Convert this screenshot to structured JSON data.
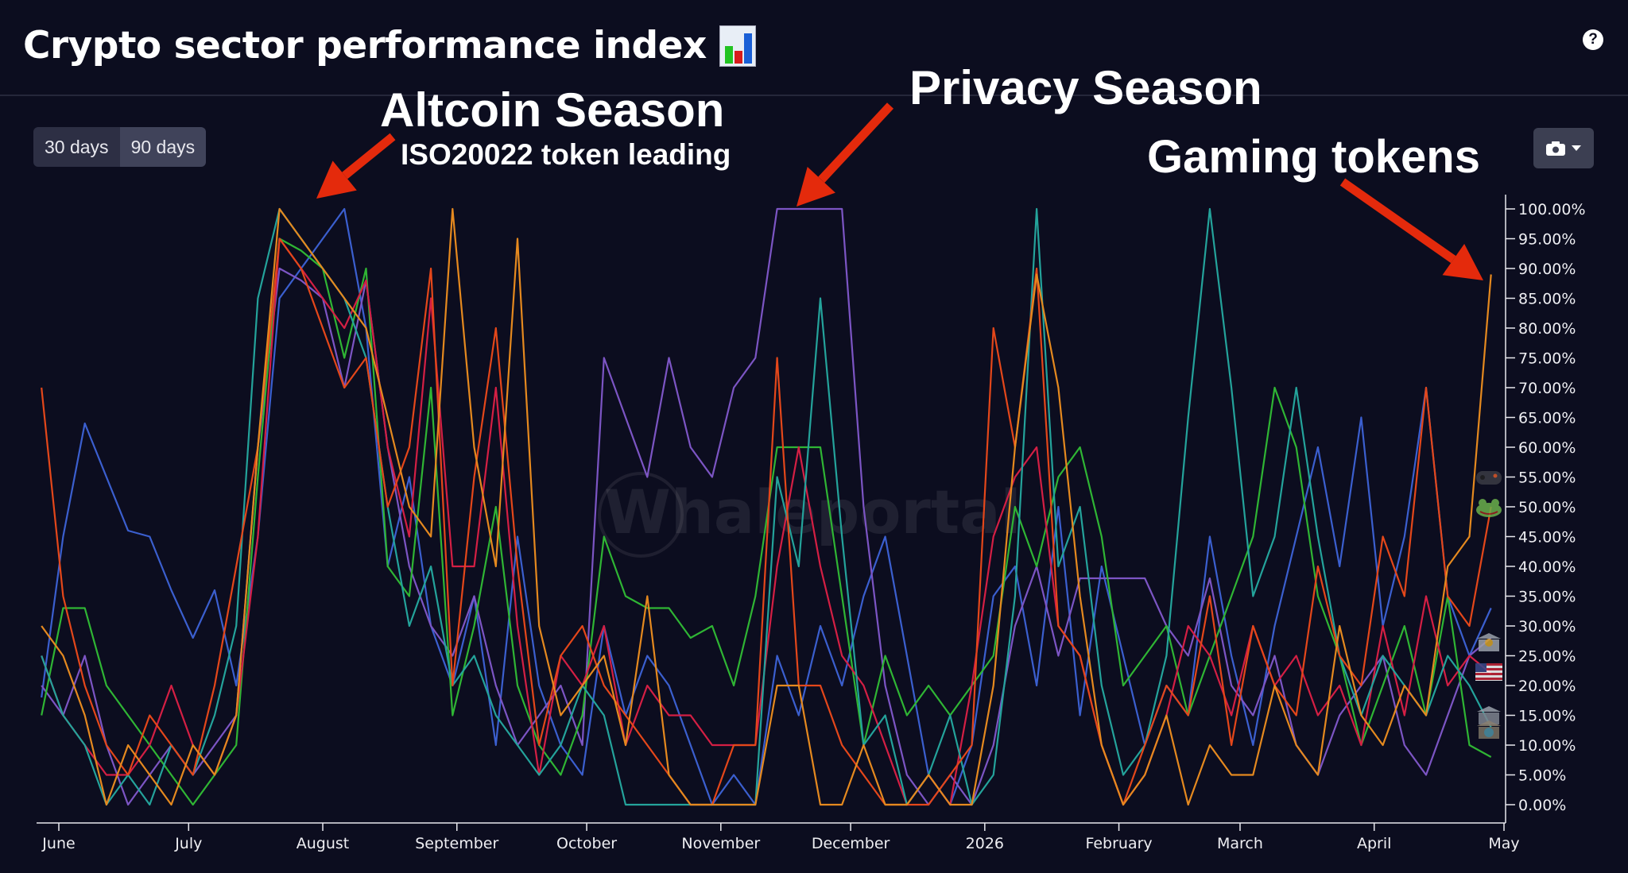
{
  "header": {
    "title": "Crypto sector performance index",
    "title_icon": "bar-chart-emoji",
    "help_label": "?"
  },
  "controls": {
    "range_buttons": [
      "30 days",
      "90 days"
    ],
    "camera_icon": "camera-icon"
  },
  "watermark": "Whaleportal",
  "annotations": {
    "altcoin": "Altcoin Season",
    "iso": "ISO20022 token leading",
    "privacy": "Privacy Season",
    "gaming": "Gaming tokens",
    "arrow_color": "#e42a0c"
  },
  "legend_icons": [
    "game-controller-icon",
    "frog-icon",
    "bank-dollar-icon",
    "us-flag-icon",
    "bank-icon",
    "bank-globe-icon"
  ],
  "chart_data": {
    "type": "line",
    "title": "Crypto sector performance index",
    "xlabel": "",
    "ylabel": "",
    "ylim": [
      0,
      100
    ],
    "y_axis_side": "right",
    "grid": false,
    "xtick_labels": [
      "June",
      "July",
      "August",
      "September",
      "October",
      "November",
      "December",
      "2026",
      "February",
      "March",
      "April",
      "May"
    ],
    "xtick_dates": [
      "2025-06-01",
      "2025-07-01",
      "2025-08-01",
      "2025-09-01",
      "2025-10-01",
      "2025-11-01",
      "2025-12-01",
      "2026-01-01",
      "2026-02-01",
      "2026-03-01",
      "2026-04-01",
      "2026-05-01"
    ],
    "ytick_labels": [
      "100.00%",
      "95.00%",
      "90.00%",
      "85.00%",
      "80.00%",
      "75.00%",
      "70.00%",
      "65.00%",
      "60.00%",
      "55.00%",
      "50.00%",
      "45.00%",
      "40.00%",
      "35.00%",
      "30.00%",
      "25.00%",
      "20.00%",
      "15.00%",
      "10.00%",
      "5.00%",
      "0.00%"
    ],
    "x": [
      "2025-05-28",
      "2025-06-02",
      "2025-06-07",
      "2025-06-12",
      "2025-06-17",
      "2025-06-22",
      "2025-06-27",
      "2025-07-02",
      "2025-07-07",
      "2025-07-12",
      "2025-07-17",
      "2025-07-22",
      "2025-07-27",
      "2025-08-01",
      "2025-08-06",
      "2025-08-11",
      "2025-08-16",
      "2025-08-21",
      "2025-08-26",
      "2025-08-31",
      "2025-09-05",
      "2025-09-10",
      "2025-09-15",
      "2025-09-20",
      "2025-09-25",
      "2025-09-30",
      "2025-10-05",
      "2025-10-10",
      "2025-10-15",
      "2025-10-20",
      "2025-10-25",
      "2025-10-30",
      "2025-11-04",
      "2025-11-09",
      "2025-11-14",
      "2025-11-19",
      "2025-11-24",
      "2025-11-29",
      "2025-12-04",
      "2025-12-09",
      "2025-12-14",
      "2025-12-19",
      "2025-12-24",
      "2025-12-29",
      "2026-01-03",
      "2026-01-08",
      "2026-01-13",
      "2026-01-18",
      "2026-01-23",
      "2026-01-28",
      "2026-02-02",
      "2026-02-07",
      "2026-02-12",
      "2026-02-17",
      "2026-02-22",
      "2026-02-27",
      "2026-03-04",
      "2026-03-09",
      "2026-03-14",
      "2026-03-19",
      "2026-03-24",
      "2026-03-29",
      "2026-04-03",
      "2026-04-08",
      "2026-04-13",
      "2026-04-18",
      "2026-04-23",
      "2026-04-28"
    ],
    "series": [
      {
        "color": "#3b5fcf",
        "values": [
          18,
          45,
          64,
          55,
          46,
          45,
          36,
          28,
          36,
          20,
          45,
          85,
          90,
          95,
          100,
          80,
          40,
          55,
          30,
          20,
          35,
          10,
          45,
          20,
          10,
          5,
          30,
          15,
          25,
          20,
          10,
          0,
          5,
          0,
          25,
          15,
          30,
          20,
          35,
          45,
          25,
          5,
          0,
          10,
          35,
          40,
          20,
          50,
          15,
          40,
          25,
          10,
          20,
          15,
          45,
          25,
          10,
          30,
          45,
          60,
          40,
          65,
          30,
          45,
          70,
          35,
          25,
          33
        ]
      },
      {
        "color": "#7c55c4",
        "values": [
          20,
          15,
          25,
          10,
          0,
          5,
          10,
          5,
          10,
          15,
          60,
          90,
          88,
          85,
          70,
          88,
          60,
          40,
          30,
          25,
          35,
          20,
          10,
          15,
          20,
          10,
          75,
          65,
          55,
          75,
          60,
          55,
          70,
          75,
          100,
          100,
          100,
          100,
          50,
          20,
          5,
          0,
          5,
          0,
          10,
          30,
          40,
          25,
          38,
          38,
          38,
          38,
          30,
          25,
          38,
          20,
          15,
          25,
          10,
          5,
          15,
          20,
          25,
          10,
          5,
          15,
          25,
          28
        ]
      },
      {
        "color": "#2fb534",
        "values": [
          15,
          33,
          33,
          20,
          15,
          10,
          5,
          0,
          5,
          10,
          55,
          95,
          93,
          90,
          75,
          90,
          40,
          35,
          70,
          15,
          30,
          50,
          20,
          10,
          5,
          15,
          45,
          35,
          33,
          33,
          28,
          30,
          20,
          35,
          60,
          60,
          60,
          35,
          10,
          25,
          15,
          20,
          15,
          20,
          25,
          50,
          40,
          55,
          60,
          45,
          20,
          25,
          30,
          15,
          25,
          35,
          45,
          70,
          60,
          35,
          25,
          10,
          20,
          30,
          15,
          35,
          10,
          8
        ]
      },
      {
        "color": "#d41f44",
        "values": [
          25,
          15,
          10,
          5,
          5,
          10,
          20,
          10,
          5,
          15,
          45,
          95,
          90,
          85,
          80,
          88,
          60,
          45,
          85,
          40,
          40,
          70,
          30,
          5,
          25,
          20,
          30,
          10,
          20,
          15,
          15,
          10,
          10,
          10,
          40,
          60,
          40,
          25,
          20,
          10,
          0,
          5,
          0,
          20,
          45,
          55,
          60,
          30,
          25,
          10,
          0,
          5,
          15,
          30,
          25,
          15,
          30,
          20,
          25,
          15,
          20,
          10,
          30,
          15,
          35,
          20,
          25,
          22
        ]
      },
      {
        "color": "#24a39b",
        "values": [
          25,
          15,
          10,
          0,
          5,
          0,
          10,
          5,
          15,
          30,
          85,
          100,
          95,
          90,
          85,
          75,
          50,
          30,
          40,
          20,
          25,
          15,
          10,
          5,
          10,
          20,
          15,
          0,
          0,
          0,
          0,
          0,
          0,
          0,
          55,
          40,
          85,
          45,
          10,
          15,
          0,
          5,
          15,
          0,
          5,
          35,
          100,
          40,
          50,
          20,
          5,
          10,
          25,
          65,
          100,
          70,
          35,
          45,
          70,
          45,
          25,
          15,
          25,
          20,
          15,
          25,
          20,
          13
        ]
      },
      {
        "color": "#e4471a",
        "values": [
          70,
          35,
          20,
          10,
          5,
          15,
          10,
          5,
          20,
          40,
          60,
          95,
          90,
          80,
          70,
          75,
          50,
          60,
          90,
          20,
          55,
          80,
          40,
          10,
          25,
          30,
          20,
          15,
          10,
          5,
          0,
          0,
          10,
          10,
          75,
          20,
          20,
          10,
          5,
          0,
          0,
          0,
          5,
          10,
          80,
          60,
          90,
          30,
          25,
          10,
          0,
          10,
          20,
          15,
          35,
          10,
          30,
          20,
          15,
          40,
          25,
          20,
          45,
          35,
          70,
          35,
          30,
          50
        ]
      },
      {
        "color": "#e5891f",
        "values": [
          30,
          25,
          15,
          0,
          10,
          5,
          0,
          10,
          5,
          15,
          60,
          100,
          95,
          90,
          85,
          80,
          65,
          50,
          45,
          100,
          60,
          40,
          95,
          30,
          15,
          20,
          25,
          10,
          35,
          5,
          0,
          0,
          0,
          0,
          20,
          20,
          0,
          0,
          10,
          0,
          0,
          5,
          0,
          0,
          20,
          60,
          89,
          70,
          35,
          10,
          0,
          5,
          15,
          0,
          10,
          5,
          5,
          20,
          10,
          5,
          30,
          15,
          10,
          20,
          15,
          40,
          45,
          89
        ]
      }
    ]
  }
}
